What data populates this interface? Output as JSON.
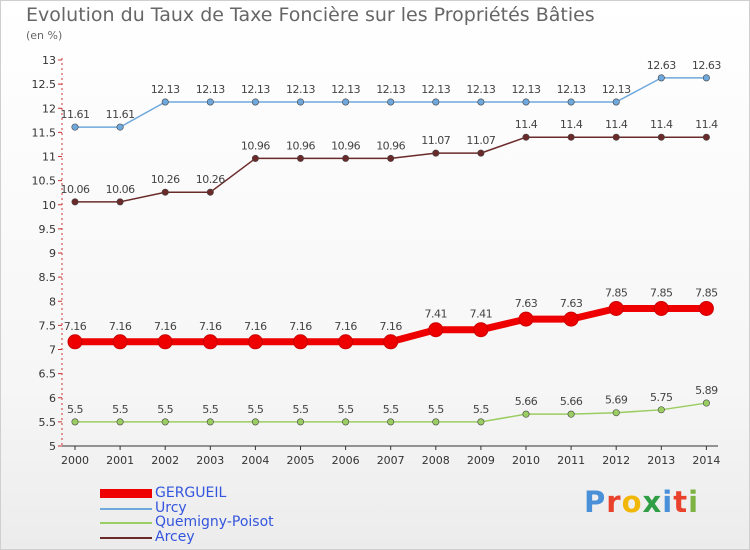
{
  "header": {
    "title": "Evolution du Taux de Taxe Foncière sur les Propriétés Bâties",
    "unit": "(en %)"
  },
  "brand": {
    "text": "Proxiti",
    "colors": [
      "#4a90d9",
      "#e8412c",
      "#f2b705",
      "#2f9e44",
      "#4a90d9",
      "#e8412c",
      "#7cb342"
    ]
  },
  "chart_data": {
    "type": "line",
    "x": [
      "2000",
      "2001",
      "2002",
      "2003",
      "2004",
      "2005",
      "2006",
      "2007",
      "2008",
      "2009",
      "2010",
      "2011",
      "2012",
      "2013",
      "2014"
    ],
    "ylim": [
      5,
      13
    ],
    "yticks": [
      "5",
      "5.5",
      "6",
      "6.5",
      "7",
      "7.5",
      "8",
      "8.5",
      "9",
      "9.5",
      "10",
      "10.5",
      "11",
      "11.5",
      "12",
      "12.5",
      "13"
    ],
    "grid": false,
    "legend_position": "bottom-left",
    "series": [
      {
        "name": "GERGUEIL",
        "color": "#ee0000",
        "emphasis": "thick",
        "values": [
          7.16,
          7.16,
          7.16,
          7.16,
          7.16,
          7.16,
          7.16,
          7.16,
          7.41,
          7.41,
          7.63,
          7.63,
          7.85,
          7.85,
          7.85
        ],
        "labels": [
          "7.16",
          "7.16",
          "7.16",
          "7.16",
          "7.16",
          "7.16",
          "7.16",
          "7.16",
          "7.41",
          "7.41",
          "7.63",
          "7.63",
          "7.85",
          "7.85",
          "7.85"
        ]
      },
      {
        "name": "Urcy",
        "color": "#6fa8dc",
        "emphasis": "normal",
        "values": [
          11.61,
          11.61,
          12.13,
          12.13,
          12.13,
          12.13,
          12.13,
          12.13,
          12.13,
          12.13,
          12.13,
          12.13,
          12.13,
          12.63,
          12.63
        ],
        "labels": [
          "11.61",
          "11.61",
          "12.13",
          "12.13",
          "12.13",
          "12.13",
          "12.13",
          "12.13",
          "12.13",
          "12.13",
          "12.13",
          "12.13",
          "12.13",
          "12.63",
          "12.63"
        ]
      },
      {
        "name": "Quemigny-Poisot",
        "color": "#9acd62",
        "emphasis": "normal",
        "values": [
          5.5,
          5.5,
          5.5,
          5.5,
          5.5,
          5.5,
          5.5,
          5.5,
          5.5,
          5.5,
          5.66,
          5.66,
          5.69,
          5.75,
          5.89
        ],
        "labels": [
          "5.5",
          "5.5",
          "5.5",
          "5.5",
          "5.5",
          "5.5",
          "5.5",
          "5.5",
          "5.5",
          "5.5",
          "5.66",
          "5.66",
          "5.69",
          "5.75",
          "5.89"
        ]
      },
      {
        "name": "Arcey",
        "color": "#6b2a2a",
        "emphasis": "normal",
        "values": [
          10.06,
          10.06,
          10.26,
          10.26,
          10.96,
          10.96,
          10.96,
          10.96,
          11.07,
          11.07,
          11.4,
          11.4,
          11.4,
          11.4,
          11.4
        ],
        "labels": [
          "10.06",
          "10.06",
          "10.26",
          "10.26",
          "10.96",
          "10.96",
          "10.96",
          "10.96",
          "11.07",
          "11.07",
          "11.4",
          "11.4",
          "11.4",
          "11.4",
          "11.4"
        ]
      }
    ]
  }
}
